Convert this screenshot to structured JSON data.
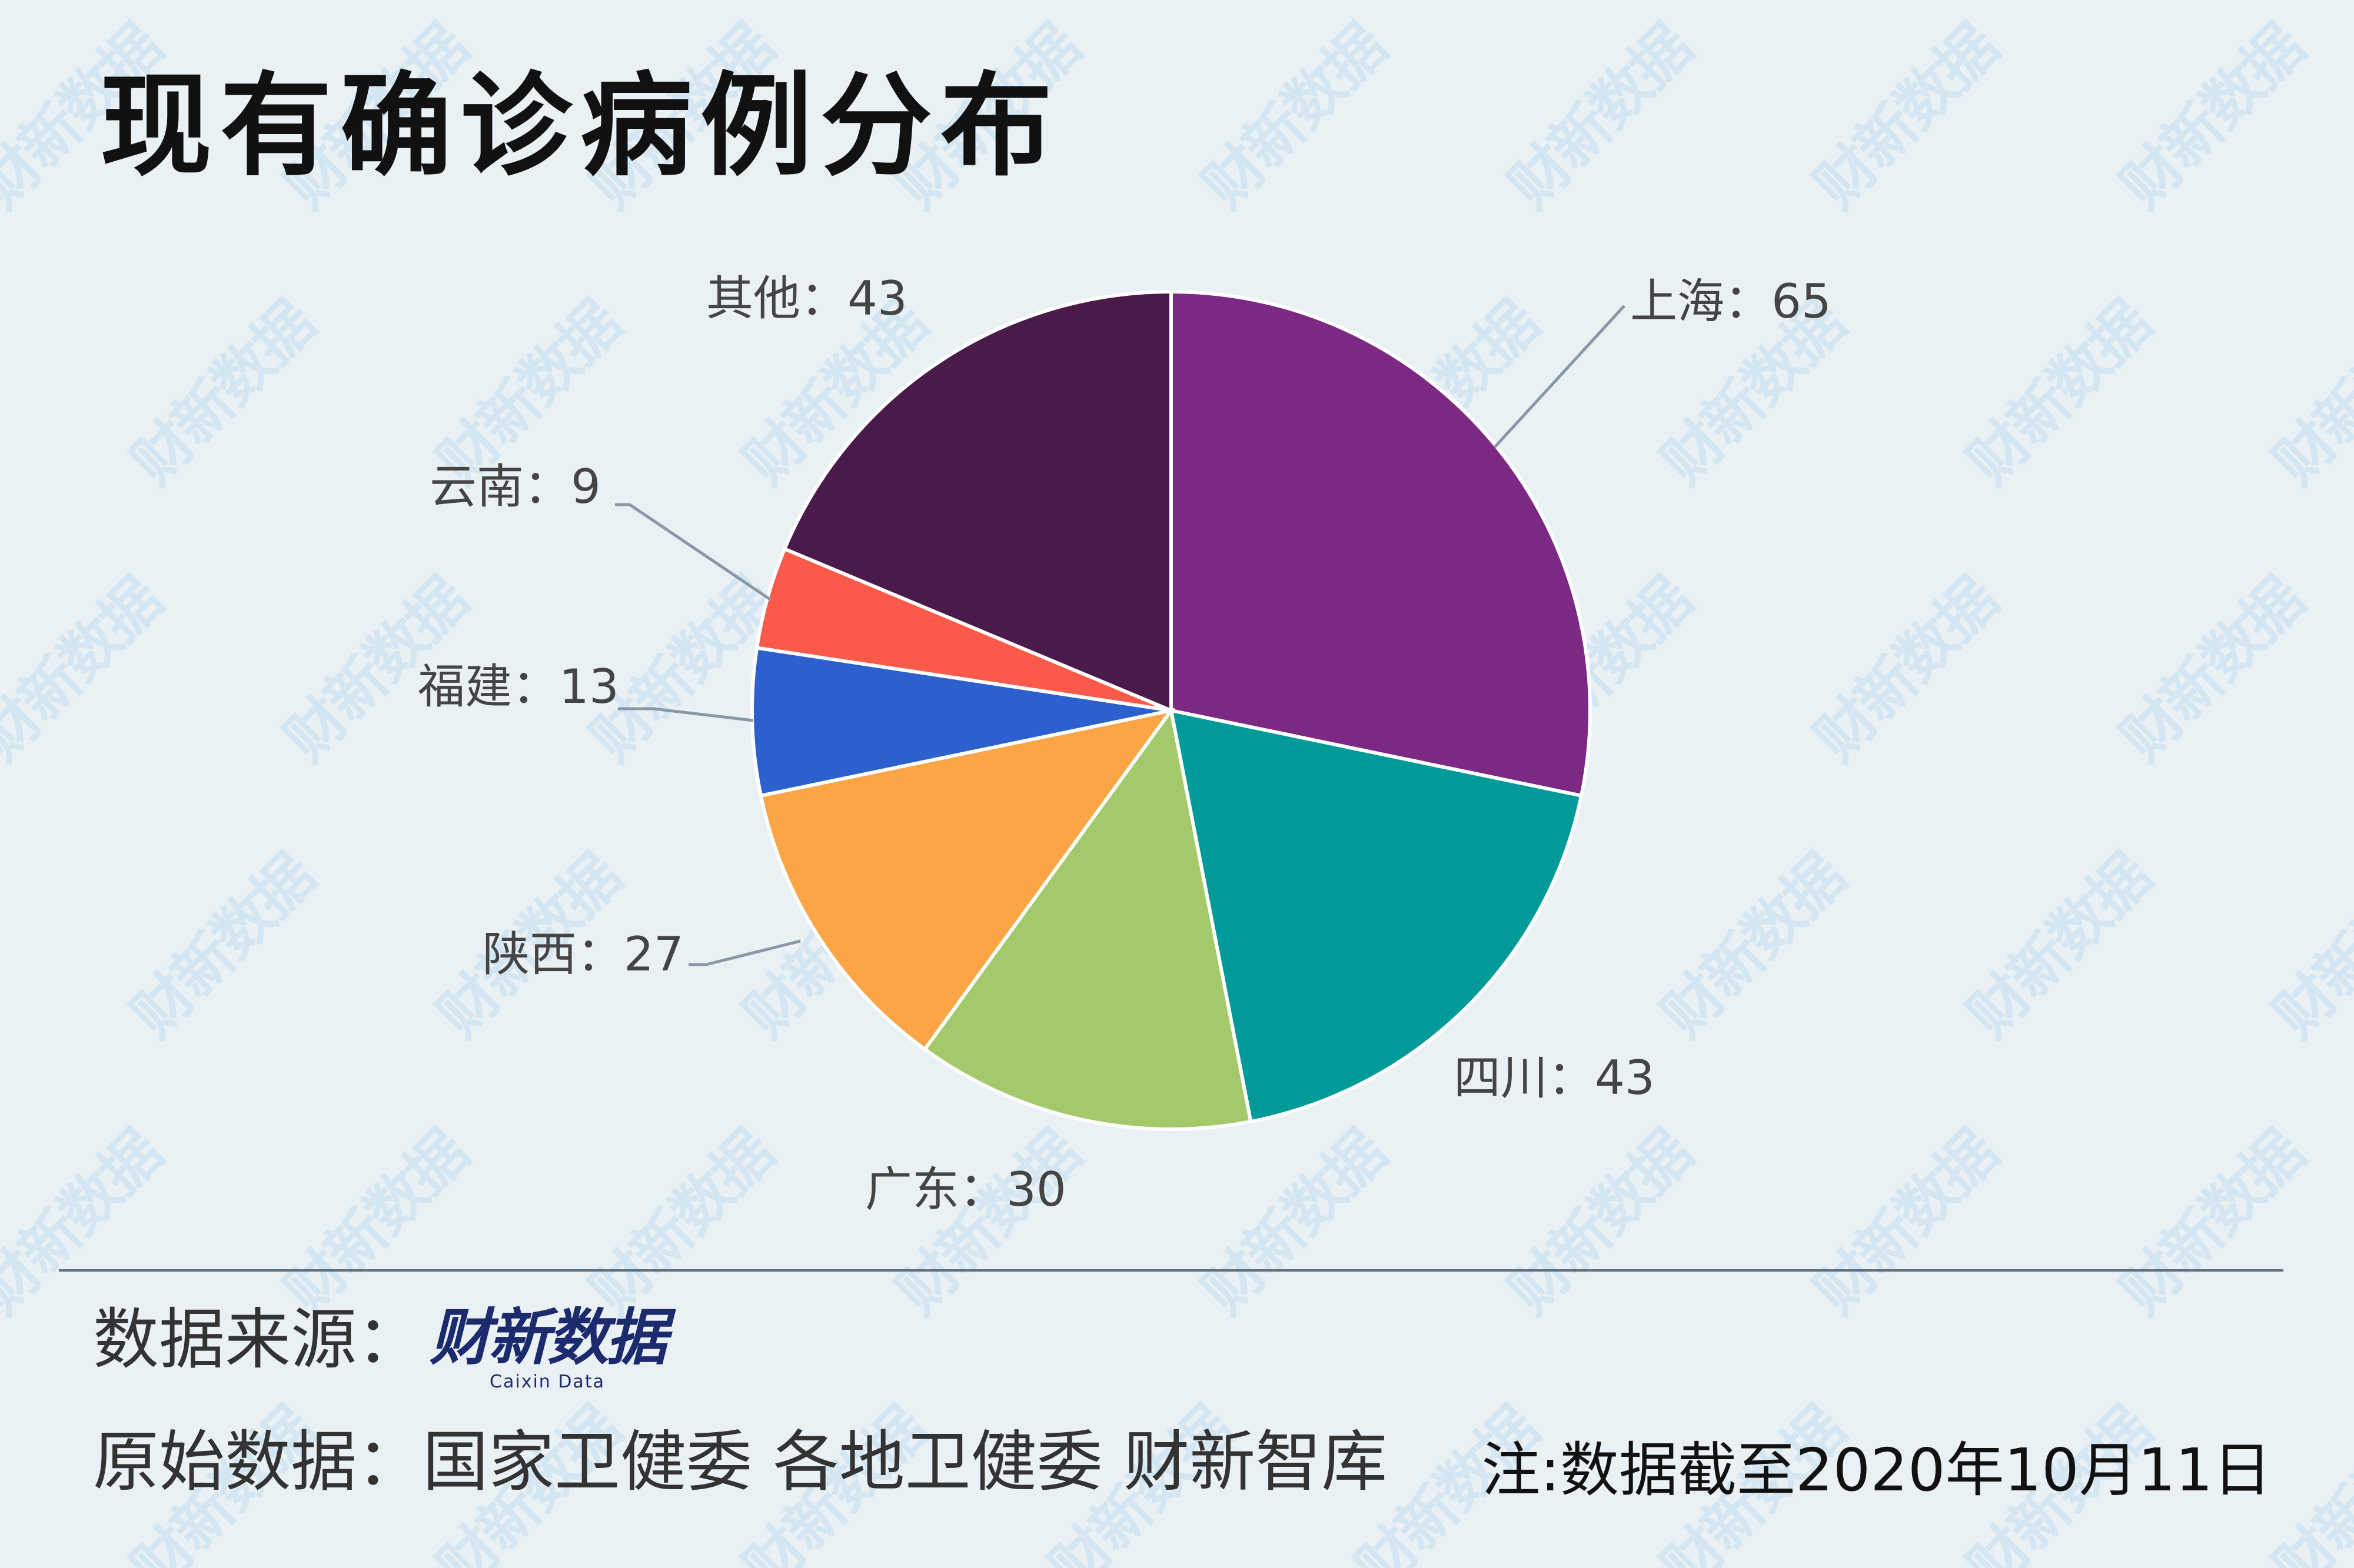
{
  "title": "现有确诊病例分布",
  "footer": {
    "source_label": "数据来源：",
    "logo_text": "财新数据",
    "logo_sub": "Caixin Data",
    "origin_label": "原始数据：",
    "origin_value": "国家卫健委  各地卫健委  财新智库",
    "note": "注:数据截至2020年10月11日"
  },
  "watermark_text": "财新数据",
  "chart_data": {
    "type": "pie",
    "title": "现有确诊病例分布",
    "label_separator": "：",
    "slices": [
      {
        "label": "上海",
        "value": 65,
        "color": "#7b2982"
      },
      {
        "label": "四川",
        "value": 43,
        "color": "#009a99"
      },
      {
        "label": "广东",
        "value": 30,
        "color": "#a3c96b"
      },
      {
        "label": "陕西",
        "value": 27,
        "color": "#fba546"
      },
      {
        "label": "福建",
        "value": 13,
        "color": "#2c60cf"
      },
      {
        "label": "云南",
        "value": 9,
        "color": "#fb5a4b"
      },
      {
        "label": "其他",
        "value": 43,
        "color": "#4a1a4b"
      }
    ],
    "start": "12 o'clock",
    "direction": "clockwise"
  }
}
